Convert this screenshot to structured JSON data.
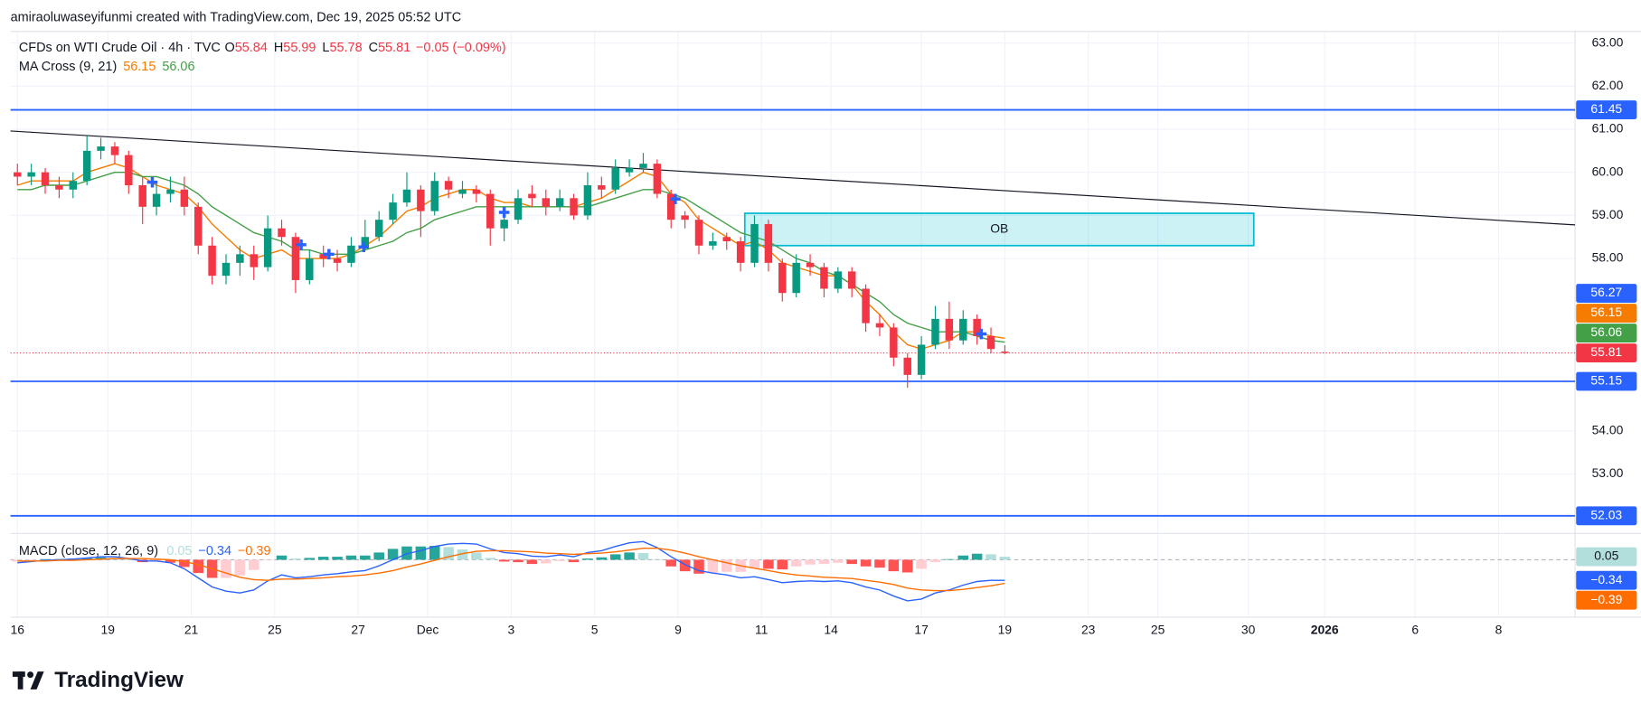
{
  "header": {
    "attribution": "amiraoluwaseyifunmi created with TradingView.com, Dec 19, 2025 05:52 UTC"
  },
  "chart_data": {
    "type": "candlestick",
    "title": "CFDs on WTI Crude Oil · 4h · TVC",
    "ohlc_letters": [
      "O",
      "H",
      "L",
      "C"
    ],
    "change": "−0.05 (−0.09%)",
    "open": [
      60.0,
      59.9,
      60.0,
      59.7,
      59.6,
      59.8,
      60.5,
      60.6,
      60.4,
      59.7,
      59.2,
      59.5,
      59.6,
      59.2,
      58.3,
      57.6,
      57.9,
      58.1,
      57.8,
      58.7,
      58.5,
      57.5,
      58.1,
      58.0,
      57.9,
      58.3,
      58.5,
      58.9,
      59.3,
      59.6,
      59.1,
      59.8,
      59.5,
      59.6,
      59.5,
      58.7,
      58.9,
      59.5,
      59.4,
      59.2,
      59.4,
      59.0,
      59.7,
      59.6,
      60.0,
      60.1,
      60.2,
      59.5,
      59.0,
      58.9,
      58.3,
      58.5,
      58.4,
      57.9,
      58.8,
      57.9,
      57.2,
      57.9,
      57.8,
      57.3,
      57.7,
      57.3,
      56.5,
      56.4,
      55.7,
      55.3,
      56.0,
      56.6,
      56.1,
      56.6,
      56.2,
      55.84
    ],
    "high": [
      60.2,
      60.2,
      60.1,
      59.9,
      60.0,
      60.85,
      60.8,
      60.7,
      60.5,
      59.9,
      59.8,
      59.9,
      59.9,
      59.3,
      58.5,
      58.1,
      58.3,
      58.3,
      59.0,
      58.9,
      58.6,
      58.2,
      58.3,
      58.2,
      58.5,
      58.9,
      59.1,
      59.5,
      60.0,
      59.7,
      60.0,
      59.9,
      59.8,
      59.7,
      59.6,
      59.1,
      59.6,
      59.7,
      59.6,
      59.6,
      59.5,
      60.0,
      59.9,
      60.3,
      60.3,
      60.45,
      60.3,
      59.6,
      59.1,
      59.0,
      58.6,
      58.6,
      58.5,
      59.0,
      58.9,
      58.0,
      58.1,
      58.1,
      57.9,
      57.8,
      57.8,
      57.4,
      56.7,
      56.5,
      55.8,
      56.2,
      56.9,
      57.0,
      56.8,
      56.7,
      56.4,
      55.99
    ],
    "low": [
      59.7,
      59.7,
      59.5,
      59.4,
      59.4,
      59.7,
      60.3,
      60.2,
      59.5,
      58.8,
      59.0,
      59.3,
      59.0,
      58.1,
      57.4,
      57.4,
      57.6,
      57.5,
      57.7,
      58.3,
      57.2,
      57.4,
      57.8,
      57.7,
      57.8,
      58.2,
      58.4,
      58.8,
      59.2,
      58.5,
      59.0,
      59.4,
      59.4,
      59.3,
      58.3,
      58.4,
      58.8,
      59.2,
      59.0,
      59.1,
      58.9,
      58.9,
      59.4,
      59.5,
      59.9,
      60.0,
      59.4,
      58.7,
      58.7,
      58.1,
      58.2,
      58.2,
      57.7,
      57.8,
      57.7,
      57.0,
      57.1,
      57.6,
      57.1,
      57.2,
      57.1,
      56.3,
      56.2,
      55.5,
      55.0,
      55.2,
      55.9,
      55.9,
      56.0,
      56.0,
      55.8,
      55.78
    ],
    "close": [
      59.9,
      60.0,
      59.7,
      59.6,
      59.8,
      60.5,
      60.6,
      60.4,
      59.7,
      59.2,
      59.5,
      59.6,
      59.2,
      58.3,
      57.6,
      57.9,
      58.1,
      57.8,
      58.7,
      58.5,
      57.5,
      58.0,
      58.0,
      57.9,
      58.3,
      58.5,
      58.9,
      59.3,
      59.6,
      59.1,
      59.8,
      59.6,
      59.6,
      59.5,
      58.7,
      58.9,
      59.4,
      59.4,
      59.2,
      59.4,
      59.0,
      59.7,
      59.6,
      60.1,
      60.1,
      60.2,
      59.5,
      58.9,
      58.9,
      58.3,
      58.4,
      58.4,
      57.9,
      58.8,
      57.9,
      57.2,
      57.9,
      57.8,
      57.3,
      57.7,
      57.3,
      56.5,
      56.4,
      55.7,
      55.3,
      56.0,
      56.6,
      56.1,
      56.6,
      56.2,
      55.9,
      55.81
    ],
    "up_color": "#089981",
    "down_color": "#f23645",
    "xlim": [
      0,
      112.5
    ],
    "xticks": [
      {
        "value": 0.5,
        "label": "16"
      },
      {
        "value": 7,
        "label": "19"
      },
      {
        "value": 13,
        "label": "21"
      },
      {
        "value": 19,
        "label": "25"
      },
      {
        "value": 25,
        "label": "27"
      },
      {
        "value": 30,
        "label": "Dec"
      },
      {
        "value": 36,
        "label": "3"
      },
      {
        "value": 42,
        "label": "5"
      },
      {
        "value": 48,
        "label": "9"
      },
      {
        "value": 54,
        "label": "11"
      },
      {
        "value": 59,
        "label": "14"
      },
      {
        "value": 65.5,
        "label": "17"
      },
      {
        "value": 71.5,
        "label": "19"
      },
      {
        "value": 77.5,
        "label": "23"
      },
      {
        "value": 82.5,
        "label": "25"
      },
      {
        "value": 89,
        "label": "30"
      },
      {
        "value": 94.5,
        "label": "2026",
        "bold": true
      },
      {
        "value": 101,
        "label": "6"
      },
      {
        "value": 107,
        "label": "8"
      }
    ],
    "ylim": [
      51.62,
      63.27
    ],
    "yticks": [
      {
        "value": 63,
        "label": "63.00"
      },
      {
        "value": 62,
        "label": "62.00"
      },
      {
        "value": 61,
        "label": "61.00"
      },
      {
        "value": 60,
        "label": "60.00"
      },
      {
        "value": 59,
        "label": "59.00"
      },
      {
        "value": 58,
        "label": "58.00"
      },
      {
        "value": 54,
        "label": "54.00"
      },
      {
        "value": 53,
        "label": "53.00"
      }
    ],
    "grid": true,
    "last_price_line": true,
    "ma": {
      "title": "MA Cross (9, 21)",
      "lines": [
        {
          "color": "#f57c00",
          "values": [
            59.7,
            59.8,
            59.8,
            59.8,
            59.8,
            60.0,
            60.1,
            60.2,
            60.1,
            59.9,
            59.7,
            59.6,
            59.5,
            59.2,
            58.8,
            58.5,
            58.2,
            58.0,
            58.1,
            58.2,
            58.0,
            58.0,
            58.0,
            58.0,
            58.1,
            58.3,
            58.5,
            58.8,
            59.1,
            59.2,
            59.4,
            59.5,
            59.6,
            59.6,
            59.4,
            59.3,
            59.3,
            59.2,
            59.2,
            59.2,
            59.2,
            59.3,
            59.4,
            59.6,
            59.8,
            60.0,
            59.9,
            59.5,
            59.3,
            58.9,
            58.7,
            58.5,
            58.3,
            58.4,
            58.2,
            57.9,
            57.8,
            57.7,
            57.6,
            57.6,
            57.4,
            57.0,
            56.7,
            56.3,
            56.0,
            55.9,
            56.0,
            56.1,
            56.3,
            56.3,
            56.2,
            56.15
          ]
        },
        {
          "color": "#43a047",
          "values": [
            59.6,
            59.6,
            59.7,
            59.7,
            59.7,
            59.8,
            59.9,
            60.0,
            60.0,
            59.9,
            59.9,
            59.8,
            59.7,
            59.5,
            59.2,
            59.0,
            58.8,
            58.6,
            58.5,
            58.4,
            58.2,
            58.2,
            58.1,
            58.1,
            58.1,
            58.2,
            58.3,
            58.4,
            58.6,
            58.7,
            58.9,
            59.0,
            59.1,
            59.2,
            59.2,
            59.2,
            59.2,
            59.2,
            59.2,
            59.2,
            59.2,
            59.2,
            59.3,
            59.4,
            59.5,
            59.6,
            59.6,
            59.5,
            59.4,
            59.2,
            59.0,
            58.8,
            58.6,
            58.5,
            58.4,
            58.2,
            58.0,
            57.9,
            57.7,
            57.6,
            57.4,
            57.2,
            57.0,
            56.7,
            56.5,
            56.4,
            56.3,
            56.3,
            56.3,
            56.2,
            56.1,
            56.06
          ]
        }
      ]
    },
    "cross_markers": {
      "color": "#2962ff",
      "x": [
        10.2,
        20.9,
        22.9,
        25.4,
        35.5,
        47.8,
        69.8
      ],
      "y": [
        59.77,
        58.32,
        58.1,
        58.27,
        59.07,
        59.38,
        56.25
      ]
    },
    "trendline": {
      "color": "#131722",
      "x": [
        0,
        112.5
      ],
      "y": [
        60.96,
        58.78
      ]
    },
    "zone": {
      "label": "OB",
      "x": [
        52.8,
        89.4
      ],
      "y": [
        58.3,
        59.05
      ],
      "color": "#00bcd4",
      "label_color": "#9c27b0"
    },
    "hlines": [
      {
        "value": 61.45,
        "color": "#2962ff"
      },
      {
        "value": 55.15,
        "color": "#2962ff"
      },
      {
        "value": 52.03,
        "color": "#2962ff"
      }
    ],
    "price_tags": [
      {
        "value": 56.27,
        "color": "#2962ff"
      }
    ],
    "macd": {
      "title": "MACD (close, 12, 26, 9)",
      "ylim": [
        -0.95,
        0.4
      ],
      "zero_line": true,
      "histogram": {
        "colors": [
          "#26a69a",
          "#b2dfdb",
          "#ffcdd2",
          "#ff5252"
        ],
        "values": [
          -0.03,
          -0.01,
          0.01,
          0.01,
          0.02,
          0.03,
          0.04,
          0.03,
          0.0,
          -0.04,
          -0.03,
          -0.05,
          -0.12,
          -0.22,
          -0.3,
          -0.3,
          -0.26,
          -0.17,
          -0.01,
          0.07,
          0.02,
          0.03,
          0.05,
          0.05,
          0.07,
          0.07,
          0.12,
          0.18,
          0.22,
          0.22,
          0.23,
          0.21,
          0.17,
          0.12,
          0.03,
          -0.03,
          -0.04,
          -0.07,
          -0.06,
          -0.02,
          -0.04,
          0.02,
          0.04,
          0.09,
          0.12,
          0.11,
          0.01,
          -0.11,
          -0.19,
          -0.23,
          -0.22,
          -0.2,
          -0.2,
          -0.14,
          -0.15,
          -0.16,
          -0.11,
          -0.08,
          -0.07,
          -0.05,
          -0.07,
          -0.11,
          -0.13,
          -0.19,
          -0.21,
          -0.15,
          -0.04,
          0.01,
          0.07,
          0.1,
          0.09,
          0.05
        ]
      },
      "macd": {
        "color": "#2962ff",
        "values": [
          -0.05,
          -0.03,
          -0.01,
          0.0,
          0.01,
          0.03,
          0.05,
          0.05,
          0.02,
          -0.02,
          -0.02,
          -0.05,
          -0.15,
          -0.3,
          -0.45,
          -0.52,
          -0.55,
          -0.5,
          -0.35,
          -0.25,
          -0.3,
          -0.28,
          -0.25,
          -0.23,
          -0.2,
          -0.18,
          -0.1,
          0.0,
          0.1,
          0.15,
          0.22,
          0.26,
          0.27,
          0.26,
          0.18,
          0.12,
          0.1,
          0.06,
          0.05,
          0.08,
          0.05,
          0.12,
          0.15,
          0.22,
          0.28,
          0.3,
          0.2,
          0.05,
          -0.08,
          -0.18,
          -0.22,
          -0.25,
          -0.3,
          -0.28,
          -0.33,
          -0.38,
          -0.36,
          -0.35,
          -0.36,
          -0.35,
          -0.38,
          -0.45,
          -0.5,
          -0.6,
          -0.68,
          -0.65,
          -0.55,
          -0.5,
          -0.42,
          -0.36,
          -0.34,
          -0.34
        ]
      },
      "signal": {
        "color": "#ff6d00",
        "values": [
          -0.02,
          -0.02,
          -0.02,
          -0.01,
          -0.01,
          0.0,
          0.01,
          0.02,
          0.02,
          0.02,
          0.01,
          0.0,
          -0.03,
          -0.08,
          -0.15,
          -0.22,
          -0.29,
          -0.33,
          -0.34,
          -0.32,
          -0.32,
          -0.31,
          -0.3,
          -0.28,
          -0.27,
          -0.25,
          -0.22,
          -0.18,
          -0.12,
          -0.07,
          -0.01,
          0.05,
          0.1,
          0.14,
          0.15,
          0.15,
          0.14,
          0.13,
          0.11,
          0.1,
          0.09,
          0.1,
          0.11,
          0.13,
          0.16,
          0.19,
          0.19,
          0.16,
          0.11,
          0.05,
          0.0,
          -0.05,
          -0.1,
          -0.14,
          -0.18,
          -0.22,
          -0.25,
          -0.27,
          -0.29,
          -0.3,
          -0.31,
          -0.34,
          -0.37,
          -0.41,
          -0.47,
          -0.5,
          -0.51,
          -0.51,
          -0.49,
          -0.46,
          -0.43,
          -0.39
        ]
      },
      "last_labels": {
        "histogram": "0.05",
        "macd": "−0.34",
        "signal": "−0.39"
      }
    }
  },
  "footer": {
    "brand": "TradingView"
  }
}
